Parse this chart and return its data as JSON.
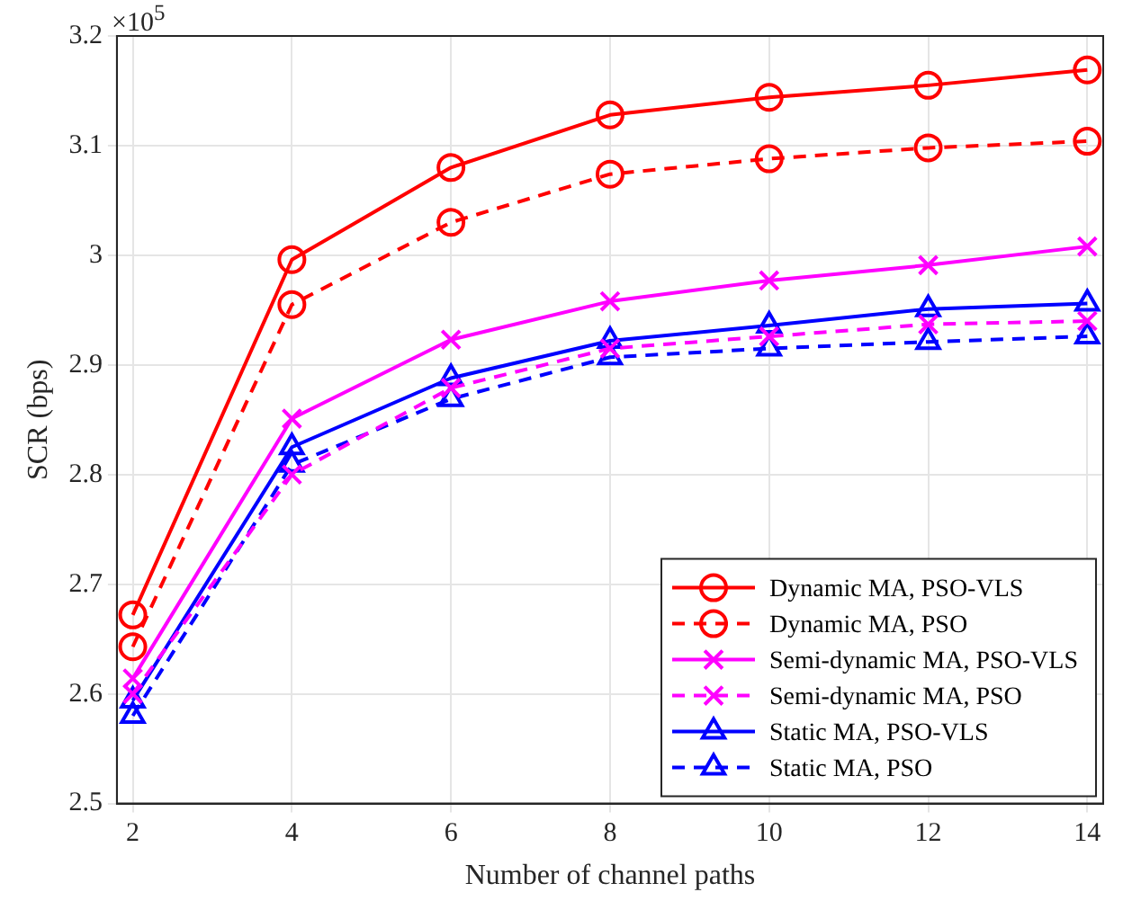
{
  "chart_data": {
    "type": "line",
    "xlabel": "Number of channel paths",
    "ylabel": "SCR (bps)",
    "x": [
      2,
      4,
      6,
      8,
      10,
      12,
      14
    ],
    "xlim": [
      1.8,
      14.2
    ],
    "xticks": [
      2,
      4,
      6,
      8,
      10,
      12,
      14
    ],
    "ylim": [
      2.5,
      3.2
    ],
    "yticks": [
      2.5,
      2.6,
      2.7,
      2.8,
      2.9,
      3,
      3.1,
      3.2
    ],
    "annotations": [
      "×10$^{5}$"
    ],
    "grid": true,
    "legend": "bottom right",
    "series": [
      {
        "name": "Dynamic MA, PSO-VLS",
        "color": "#ff0000",
        "marker": "circle",
        "line_style": "solid",
        "values": [
          2.672,
          2.996,
          3.08,
          3.128,
          3.144,
          3.155,
          3.169
        ]
      },
      {
        "name": "Dynamic MA, PSO",
        "color": "#ff0000",
        "marker": "circle",
        "line_style": "dashed",
        "values": [
          2.643,
          2.955,
          3.03,
          3.074,
          3.088,
          3.098,
          3.104
        ]
      },
      {
        "name": "Semi-dynamic MA, PSO-VLS",
        "color": "#ff00ff",
        "marker": "cross",
        "line_style": "solid",
        "values": [
          2.614,
          2.851,
          2.923,
          2.958,
          2.977,
          2.991,
          3.008
        ]
      },
      {
        "name": "Semi-dynamic MA, PSO",
        "color": "#ff00ff",
        "marker": "cross",
        "line_style": "dashed",
        "values": [
          2.6,
          2.8,
          2.879,
          2.915,
          2.926,
          2.937,
          2.94
        ]
      },
      {
        "name": "Static MA, PSO-VLS",
        "color": "#0000ff",
        "marker": "triangle",
        "line_style": "solid",
        "values": [
          2.594,
          2.825,
          2.888,
          2.922,
          2.936,
          2.951,
          2.956
        ]
      },
      {
        "name": "Static MA, PSO",
        "color": "#0000ff",
        "marker": "triangle",
        "line_style": "dashed",
        "values": [
          2.58,
          2.809,
          2.869,
          2.907,
          2.915,
          2.921,
          2.926
        ]
      }
    ]
  }
}
